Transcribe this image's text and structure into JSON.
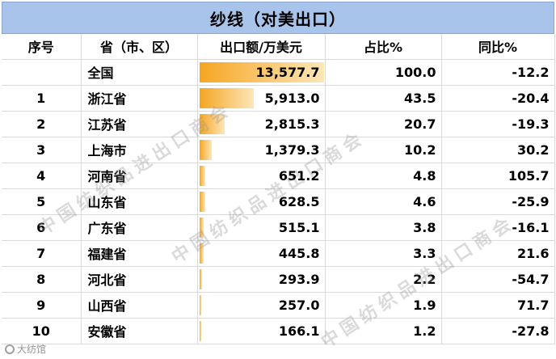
{
  "title": "纱线（对美出口）",
  "headers": {
    "no": "序号",
    "region": "省（市、区）",
    "export": "出口额/万美元",
    "share": "占比%",
    "yoy": "同比%"
  },
  "rows": [
    {
      "no": "",
      "region": "全国",
      "export": "13,577.7",
      "share": "100.0",
      "yoy": "-12.2",
      "bar": 13577.7
    },
    {
      "no": "1",
      "region": "浙江省",
      "export": "5,913.0",
      "share": "43.5",
      "yoy": "-20.4",
      "bar": 5913.0
    },
    {
      "no": "2",
      "region": "江苏省",
      "export": "2,815.3",
      "share": "20.7",
      "yoy": "-19.3",
      "bar": 2815.3
    },
    {
      "no": "3",
      "region": "上海市",
      "export": "1,379.3",
      "share": "10.2",
      "yoy": "30.2",
      "bar": 1379.3
    },
    {
      "no": "4",
      "region": "河南省",
      "export": "651.2",
      "share": "4.8",
      "yoy": "105.7",
      "bar": 651.2
    },
    {
      "no": "5",
      "region": "山东省",
      "export": "628.5",
      "share": "4.6",
      "yoy": "-25.9",
      "bar": 628.5
    },
    {
      "no": "6",
      "region": "广东省",
      "export": "515.1",
      "share": "3.8",
      "yoy": "-16.1",
      "bar": 515.1
    },
    {
      "no": "7",
      "region": "福建省",
      "export": "445.8",
      "share": "3.3",
      "yoy": "21.6",
      "bar": 445.8
    },
    {
      "no": "8",
      "region": "河北省",
      "export": "293.9",
      "share": "2.2",
      "yoy": "-54.7",
      "bar": 293.9
    },
    {
      "no": "9",
      "region": "山西省",
      "export": "257.0",
      "share": "1.9",
      "yoy": "71.7",
      "bar": 257.0
    },
    {
      "no": "10",
      "region": "安徽省",
      "export": "166.1",
      "share": "1.2",
      "yoy": "-27.8",
      "bar": 166.1
    }
  ],
  "bar_max": 13577.7,
  "bar_color": "#f5a623",
  "header_color": "#a9c4eb",
  "watermark": "中国纺织品进出口商会",
  "logo_text": "大纺馆"
}
